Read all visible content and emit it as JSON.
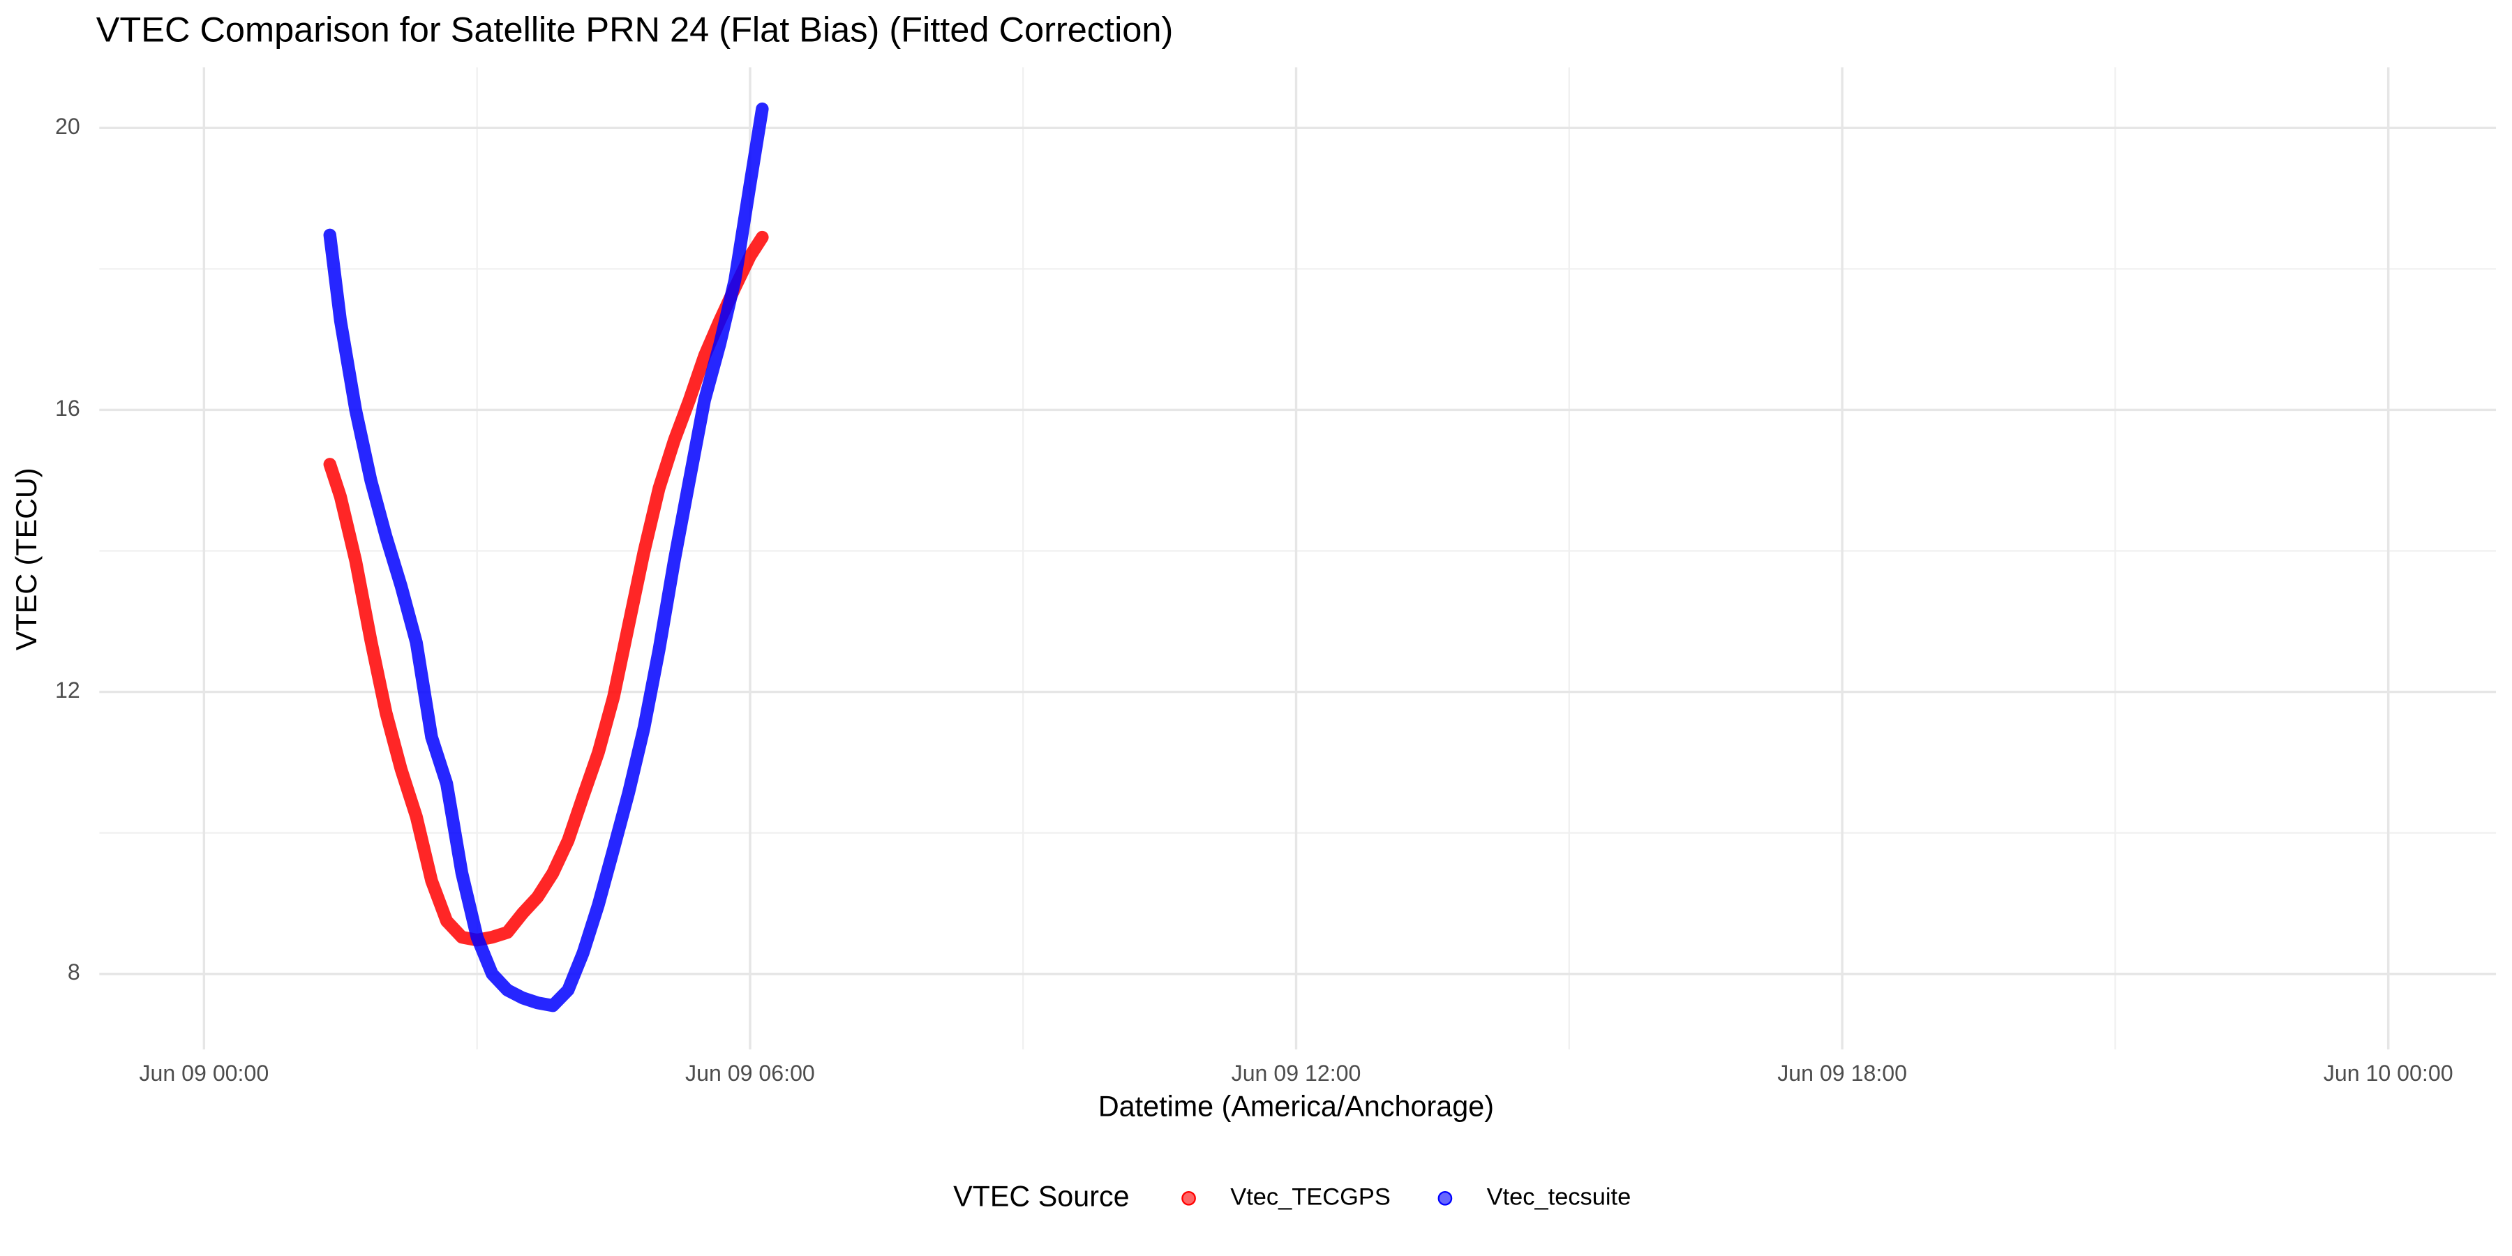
{
  "chart_data": {
    "type": "line",
    "title": "VTEC Comparison for Satellite PRN 24 (Flat Bias)   (Fitted Correction)",
    "x_label": "Datetime (America/Anchorage)",
    "y_label": "VTEC (TECU)",
    "legend_title": "VTEC Source",
    "legend_position": "bottom",
    "grid": true,
    "x": [
      "Jun 09 01:23",
      "Jun 09 01:30",
      "Jun 09 01:40",
      "Jun 09 01:50",
      "Jun 09 02:00",
      "Jun 09 02:10",
      "Jun 09 02:20",
      "Jun 09 02:30",
      "Jun 09 02:40",
      "Jun 09 02:50",
      "Jun 09 03:00",
      "Jun 09 03:10",
      "Jun 09 03:20",
      "Jun 09 03:30",
      "Jun 09 03:40",
      "Jun 09 03:50",
      "Jun 09 04:00",
      "Jun 09 04:10",
      "Jun 09 04:20",
      "Jun 09 04:30",
      "Jun 09 04:40",
      "Jun 09 04:50",
      "Jun 09 05:00",
      "Jun 09 05:10",
      "Jun 09 05:20",
      "Jun 09 05:30",
      "Jun 09 05:40",
      "Jun 09 05:50",
      "Jun 09 06:00",
      "Jun 09 06:08"
    ],
    "series": [
      {
        "name": "Vtec_TECGPS",
        "color": "#ff0000",
        "values": [
          15.23,
          14.77,
          13.86,
          12.73,
          11.7,
          10.9,
          10.23,
          9.32,
          8.75,
          8.52,
          8.48,
          8.52,
          8.59,
          8.86,
          9.09,
          9.43,
          9.89,
          10.52,
          11.14,
          11.93,
          12.95,
          13.98,
          14.89,
          15.57,
          16.14,
          16.77,
          17.27,
          17.73,
          18.18,
          18.45
        ]
      },
      {
        "name": "Vtec_tecsuite",
        "color": "#0000ff",
        "values": [
          18.48,
          17.27,
          16.0,
          15.0,
          14.2,
          13.5,
          12.7,
          11.36,
          10.7,
          9.43,
          8.52,
          8.0,
          7.77,
          7.66,
          7.59,
          7.55,
          7.77,
          8.3,
          8.98,
          9.77,
          10.57,
          11.48,
          12.6,
          13.86,
          15.0,
          16.14,
          16.93,
          17.84,
          19.2,
          20.27
        ]
      }
    ],
    "xlim": [
      "Jun 08 22:51",
      "Jun 10 01:11"
    ],
    "xticks": [
      "Jun 09 00:00",
      "Jun 09 06:00",
      "Jun 09 12:00",
      "Jun 09 18:00",
      "Jun 10 00:00"
    ],
    "ylim": [
      6.93,
      20.86
    ],
    "yticks": [
      8,
      12,
      16,
      20
    ]
  }
}
